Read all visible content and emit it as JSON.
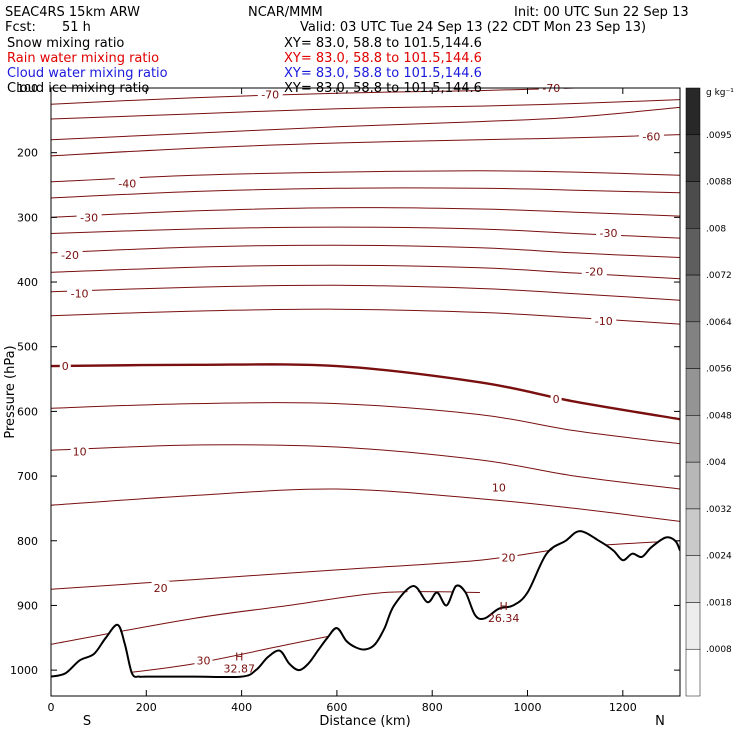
{
  "header": {
    "model": "SEAC4RS 15km ARW",
    "center": "NCAR/MMM",
    "init": "Init: 00 UTC Sun 22 Sep 13",
    "fcst_label": "Fcst:",
    "fcst_value": "51 h",
    "valid": "Valid: 03 UTC Tue 24 Sep 13 (22 CDT Mon 23 Sep 13)"
  },
  "fields": [
    {
      "label": "Snow mixing ratio",
      "xy": "XY=  83.0, 58.8 to 101.5,144.6",
      "color": "#000000"
    },
    {
      "label": "Rain water mixing ratio",
      "xy": "XY=  83.0, 58.8 to 101.5,144.6",
      "color": "#e00000"
    },
    {
      "label": "Cloud water mixing ratio",
      "xy": "XY=  83.0, 58.8 to 101.5,144.6",
      "color": "#1a1adc"
    },
    {
      "label": "Cloud ice mixing ratio",
      "xy": "XY=  83.0, 58.8 to 101.5,144.6",
      "color": "#000000"
    }
  ],
  "colorbar": {
    "unit": "g kg⁻¹",
    "labels": [
      ".0095",
      ".0088",
      ".008",
      ".0072",
      ".0064",
      ".0056",
      ".0048",
      ".004",
      ".0032",
      ".0024",
      ".0018",
      ".0008"
    ]
  },
  "chart_data": {
    "type": "line",
    "xlabel": "Distance (km)",
    "ylabel": "Pressure (hPa)",
    "xlim": [
      0,
      1320
    ],
    "ylim": [
      1040,
      100
    ],
    "x_ticks": [
      0,
      200,
      400,
      600,
      800,
      1000,
      1200
    ],
    "x_tick_labels": [
      "0",
      "200",
      "400",
      "600",
      "800",
      "1000",
      "1200"
    ],
    "y_ticks": [
      100,
      200,
      300,
      400,
      500,
      600,
      700,
      800,
      900,
      1000
    ],
    "y_tick_labels": [
      "100",
      "200",
      "300",
      "400",
      "500",
      "600",
      "700",
      "800",
      "900",
      "1000"
    ],
    "end_labels": {
      "left": "S",
      "right": "N"
    },
    "isotherms": [
      {
        "t": -70,
        "x": [
          0,
          300,
          600,
          900,
          1100,
          1320
        ],
        "p": [
          125,
          115,
          108,
          104,
          100,
          97
        ]
      },
      {
        "t": -65,
        "x": [
          0,
          300,
          600,
          900,
          1100,
          1320
        ],
        "p": [
          148,
          140,
          132,
          128,
          124,
          118
        ]
      },
      {
        "t": -60,
        "x": [
          0,
          300,
          600,
          900,
          1100,
          1320
        ],
        "p": [
          180,
          170,
          160,
          152,
          145,
          130
        ]
      },
      {
        "t": -55,
        "x": [
          0,
          300,
          600,
          900,
          1100,
          1320
        ],
        "p": [
          205,
          193,
          185,
          180,
          177,
          172
        ]
      },
      {
        "t": -45,
        "x": [
          0,
          300,
          600,
          900,
          1100,
          1320
        ],
        "p": [
          245,
          235,
          230,
          228,
          230,
          235
        ]
      },
      {
        "t": -40,
        "x": [
          0,
          300,
          600,
          900,
          1100,
          1320
        ],
        "p": [
          270,
          260,
          255,
          255,
          258,
          262
        ]
      },
      {
        "t": -30,
        "x": [
          0,
          300,
          600,
          900,
          1100,
          1320
        ],
        "p": [
          300,
          290,
          285,
          287,
          292,
          298
        ]
      },
      {
        "t": -25,
        "x": [
          0,
          300,
          600,
          900,
          1100,
          1320
        ],
        "p": [
          325,
          318,
          315,
          318,
          325,
          332
        ]
      },
      {
        "t": -20,
        "x": [
          0,
          300,
          600,
          900,
          1100,
          1320
        ],
        "p": [
          355,
          346,
          343,
          347,
          355,
          362
        ]
      },
      {
        "t": -15,
        "x": [
          0,
          300,
          600,
          900,
          1100,
          1320
        ],
        "p": [
          385,
          377,
          374,
          378,
          386,
          395
        ]
      },
      {
        "t": -10,
        "x": [
          0,
          300,
          600,
          900,
          1100,
          1320
        ],
        "p": [
          415,
          408,
          405,
          410,
          418,
          428
        ]
      },
      {
        "t": -5,
        "x": [
          0,
          300,
          600,
          900,
          1100,
          1320
        ],
        "p": [
          452,
          445,
          442,
          447,
          455,
          465
        ]
      },
      {
        "t": 0,
        "x": [
          0,
          300,
          600,
          900,
          1100,
          1320
        ],
        "p": [
          530,
          528,
          530,
          555,
          585,
          612
        ]
      },
      {
        "t": 5,
        "x": [
          0,
          300,
          600,
          900,
          1100,
          1320
        ],
        "p": [
          595,
          588,
          588,
          605,
          630,
          650
        ]
      },
      {
        "t": 10,
        "x": [
          0,
          300,
          600,
          900,
          1100,
          1320
        ],
        "p": [
          660,
          652,
          655,
          675,
          700,
          720
        ]
      },
      {
        "t": 15,
        "x": [
          0,
          300,
          600,
          900,
          1100,
          1320
        ],
        "p": [
          745,
          730,
          720,
          735,
          750,
          770
        ]
      },
      {
        "t": 20,
        "x": [
          0,
          300,
          600,
          900,
          1100,
          1320
        ],
        "p": [
          875,
          860,
          845,
          830,
          810,
          800
        ]
      },
      {
        "t": 25,
        "x": [
          0,
          300,
          500,
          700,
          900
        ],
        "p": [
          960,
          920,
          900,
          880,
          880
        ]
      },
      {
        "t": 30,
        "x": [
          150,
          300,
          500,
          600
        ],
        "p": [
          1005,
          990,
          960,
          945
        ]
      }
    ],
    "contour_labels": [
      {
        "text": "-70",
        "x": 460,
        "p": 110
      },
      {
        "text": "-70",
        "x": 1050,
        "p": 100
      },
      {
        "text": "-60",
        "x": 1260,
        "p": 175
      },
      {
        "text": "-40",
        "x": 160,
        "p": 248
      },
      {
        "text": "-30",
        "x": 80,
        "p": 300
      },
      {
        "text": "-30",
        "x": 1170,
        "p": 324
      },
      {
        "text": "-20",
        "x": 40,
        "p": 358
      },
      {
        "text": "-20",
        "x": 1140,
        "p": 384
      },
      {
        "text": "-10",
        "x": 60,
        "p": 418
      },
      {
        "text": "-10",
        "x": 1160,
        "p": 460
      },
      {
        "text": "0",
        "x": 30,
        "p": 530
      },
      {
        "text": "0",
        "x": 1060,
        "p": 581
      },
      {
        "text": "10",
        "x": 60,
        "p": 662
      },
      {
        "text": "10",
        "x": 940,
        "p": 718
      },
      {
        "text": "20",
        "x": 230,
        "p": 873
      },
      {
        "text": "20",
        "x": 960,
        "p": 826
      },
      {
        "text": "30",
        "x": 320,
        "p": 985
      }
    ],
    "high_markers": [
      {
        "label": "H",
        "value": "32.87",
        "x": 395,
        "p": 988
      },
      {
        "label": "H",
        "value": "26.34",
        "x": 950,
        "p": 910
      }
    ],
    "terrain": {
      "x": [
        0,
        30,
        60,
        90,
        115,
        140,
        155,
        170,
        185,
        200,
        300,
        400,
        430,
        455,
        480,
        500,
        520,
        540,
        560,
        580,
        600,
        620,
        640,
        660,
        680,
        700,
        720,
        760,
        790,
        810,
        830,
        850,
        870,
        890,
        910,
        940,
        970,
        1000,
        1040,
        1080,
        1110,
        1150,
        1180,
        1200,
        1220,
        1240,
        1260,
        1290,
        1310,
        1320
      ],
      "p": [
        1010,
        1005,
        985,
        975,
        950,
        930,
        960,
        1005,
        1010,
        1010,
        1010,
        1010,
        1000,
        980,
        970,
        990,
        1000,
        990,
        970,
        950,
        935,
        955,
        965,
        968,
        960,
        935,
        900,
        870,
        895,
        880,
        900,
        870,
        880,
        915,
        920,
        905,
        900,
        880,
        820,
        800,
        785,
        800,
        815,
        830,
        820,
        825,
        810,
        795,
        800,
        815
      ]
    }
  }
}
